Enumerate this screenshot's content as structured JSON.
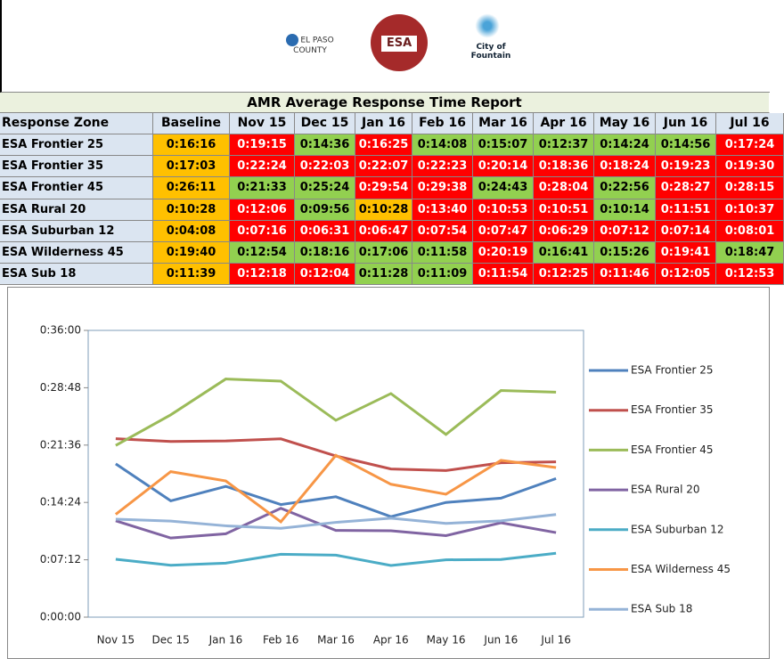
{
  "logos": [
    "EL PASO COUNTY",
    "ESA",
    "City of Fountain"
  ],
  "table": {
    "title": "AMR Average Response Time Report",
    "header": [
      "Response Zone",
      "Baseline",
      "Nov 15",
      "Dec 15",
      "Jan 16",
      "Feb 16",
      "Mar 16",
      "Apr 16",
      "May 16",
      "Jun 16",
      "Jul 16"
    ],
    "rows": [
      [
        "ESA Frontier 25",
        "0:16:16",
        "0:19:15",
        "0:14:36",
        "0:16:25",
        "0:14:08",
        "0:15:07",
        "0:12:37",
        "0:14:24",
        "0:14:56",
        "0:17:24"
      ],
      [
        "ESA Frontier 35",
        "0:17:03",
        "0:22:24",
        "0:22:03",
        "0:22:07",
        "0:22:23",
        "0:20:14",
        "0:18:36",
        "0:18:24",
        "0:19:23",
        "0:19:30"
      ],
      [
        "ESA Frontier 45",
        "0:26:11",
        "0:21:33",
        "0:25:24",
        "0:29:54",
        "0:29:38",
        "0:24:43",
        "0:28:04",
        "0:22:56",
        "0:28:27",
        "0:28:15"
      ],
      [
        "ESA Rural 20",
        "0:10:28",
        "0:12:06",
        "0:09:56",
        "0:10:28",
        "0:13:40",
        "0:10:53",
        "0:10:51",
        "0:10:14",
        "0:11:51",
        "0:10:37"
      ],
      [
        "ESA Suburban 12",
        "0:04:08",
        "0:07:16",
        "0:06:31",
        "0:06:47",
        "0:07:54",
        "0:07:47",
        "0:06:29",
        "0:07:12",
        "0:07:14",
        "0:08:01"
      ],
      [
        "ESA Wilderness 45",
        "0:19:40",
        "0:12:54",
        "0:18:16",
        "0:17:06",
        "0:11:58",
        "0:20:19",
        "0:16:41",
        "0:15:26",
        "0:19:41",
        "0:18:47"
      ],
      [
        "ESA Sub 18",
        "0:11:39",
        "0:12:18",
        "0:12:04",
        "0:11:28",
        "0:11:09",
        "0:11:54",
        "0:12:25",
        "0:11:46",
        "0:12:05",
        "0:12:53"
      ]
    ]
  },
  "chart_data": {
    "type": "line",
    "categories": [
      "Nov 15",
      "Dec 15",
      "Jan 16",
      "Feb 16",
      "Mar 16",
      "Apr 16",
      "May 16",
      "Jun 16",
      "Jul 16"
    ],
    "ylim": [
      0,
      2160
    ],
    "yticks": [
      {
        "value": 0,
        "label": "0:00:00"
      },
      {
        "value": 432,
        "label": "0:07:12"
      },
      {
        "value": 864,
        "label": "0:14:24"
      },
      {
        "value": 1296,
        "label": "0:21:36"
      },
      {
        "value": 1728,
        "label": "0:28:48"
      },
      {
        "value": 2160,
        "label": "0:36:00"
      }
    ],
    "legend": "right",
    "series": [
      {
        "name": "ESA Frontier 25",
        "color": "#4f81bd",
        "values": [
          1155,
          876,
          985,
          848,
          907,
          757,
          864,
          896,
          1044
        ]
      },
      {
        "name": "ESA Frontier 35",
        "color": "#c0504d",
        "values": [
          1344,
          1323,
          1327,
          1343,
          1214,
          1116,
          1104,
          1163,
          1170
        ]
      },
      {
        "name": "ESA Frontier 45",
        "color": "#9bbb59",
        "values": [
          1293,
          1524,
          1794,
          1778,
          1483,
          1684,
          1376,
          1707,
          1695
        ]
      },
      {
        "name": "ESA Rural 20",
        "color": "#8064a2",
        "values": [
          726,
          596,
          628,
          820,
          653,
          651,
          614,
          711,
          637
        ]
      },
      {
        "name": "ESA Suburban 12",
        "color": "#4bacc6",
        "values": [
          436,
          391,
          407,
          474,
          467,
          389,
          432,
          434,
          481
        ]
      },
      {
        "name": "ESA Wilderness 45",
        "color": "#f79646",
        "values": [
          774,
          1096,
          1026,
          718,
          1219,
          1001,
          926,
          1181,
          1127
        ]
      },
      {
        "name": "ESA Sub 18",
        "color": "#95b3d7",
        "values": [
          738,
          724,
          688,
          669,
          714,
          745,
          706,
          725,
          773
        ]
      }
    ]
  }
}
